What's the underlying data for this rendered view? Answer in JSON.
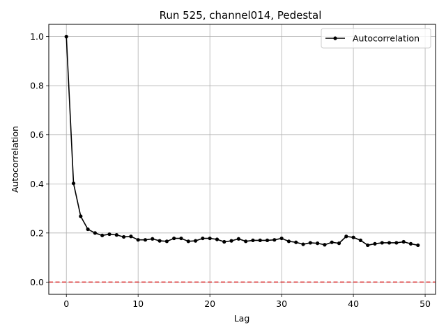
{
  "chart_data": {
    "type": "line",
    "title": "Run 525, channel014, Pedestal",
    "xlabel": "Lag",
    "ylabel": "Autocorrelation",
    "xlim": [
      -2.45,
      51.45
    ],
    "ylim": [
      -0.05,
      1.05
    ],
    "xticks": [
      0,
      10,
      20,
      30,
      40,
      50
    ],
    "yticks": [
      0.0,
      0.2,
      0.4,
      0.6,
      0.8,
      1.0
    ],
    "xtick_labels": [
      "0",
      "10",
      "20",
      "30",
      "40",
      "50"
    ],
    "ytick_labels": [
      "0.0",
      "0.2",
      "0.4",
      "0.6",
      "0.8",
      "1.0"
    ],
    "grid": true,
    "legend_position": "top-right",
    "colors": {
      "series": "#000000",
      "reference": "#d62728",
      "grid": "#b0b0b0"
    },
    "series": [
      {
        "name": "Autocorrelation",
        "marker": "dot",
        "x": [
          0,
          1,
          2,
          3,
          4,
          5,
          6,
          7,
          8,
          9,
          10,
          11,
          12,
          13,
          14,
          15,
          16,
          17,
          18,
          19,
          20,
          21,
          22,
          23,
          24,
          25,
          26,
          27,
          28,
          29,
          30,
          31,
          32,
          33,
          34,
          35,
          36,
          37,
          38,
          39,
          40,
          41,
          42,
          43,
          44,
          45,
          46,
          47,
          48,
          49
        ],
        "values": [
          1.0,
          0.402,
          0.268,
          0.215,
          0.2,
          0.19,
          0.195,
          0.192,
          0.184,
          0.186,
          0.172,
          0.172,
          0.176,
          0.168,
          0.166,
          0.178,
          0.178,
          0.166,
          0.168,
          0.178,
          0.178,
          0.174,
          0.164,
          0.168,
          0.176,
          0.166,
          0.17,
          0.17,
          0.17,
          0.172,
          0.178,
          0.166,
          0.162,
          0.154,
          0.16,
          0.158,
          0.152,
          0.162,
          0.158,
          0.186,
          0.182,
          0.17,
          0.15,
          0.156,
          0.16,
          0.16,
          0.16,
          0.164,
          0.156,
          0.15
        ]
      }
    ],
    "reference_line": {
      "y": 0.0,
      "style": "dashed"
    }
  }
}
